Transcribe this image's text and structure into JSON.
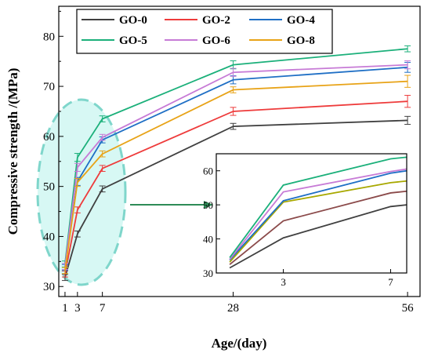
{
  "chart_data": {
    "type": "line",
    "xlabel": "Age/(day)",
    "ylabel": "Compressive strength /(MPa)",
    "x": [
      1,
      3,
      7,
      28,
      56
    ],
    "xticks": [
      "1",
      "3",
      "7",
      "28",
      "56"
    ],
    "yticks": [
      "30",
      "40",
      "50",
      "60",
      "70",
      "80"
    ],
    "xlim": [
      0,
      58
    ],
    "ylim": [
      28,
      86
    ],
    "grid": false,
    "legend_position": "top",
    "series": [
      {
        "name": "GO-0",
        "color": "#404040",
        "values": [
          31.8,
          40.5,
          49.5,
          62.0,
          63.2
        ],
        "errors": [
          0.6,
          0.6,
          0.6,
          0.6,
          0.8
        ]
      },
      {
        "name": "GO-2",
        "color": "#ee3b3b",
        "values": [
          32.5,
          45.3,
          53.6,
          65.0,
          67.0
        ],
        "errors": [
          0.6,
          0.6,
          0.6,
          0.8,
          1.2
        ]
      },
      {
        "name": "GO-4",
        "color": "#1f6fc5",
        "values": [
          33.8,
          51.0,
          59.3,
          71.3,
          73.8
        ],
        "errors": [
          0.6,
          0.8,
          0.6,
          0.8,
          1.0
        ]
      },
      {
        "name": "GO-5",
        "color": "#1bb07a",
        "values": [
          34.5,
          55.8,
          63.5,
          74.3,
          77.5
        ],
        "errors": [
          0.6,
          0.8,
          0.6,
          0.8,
          0.6
        ]
      },
      {
        "name": "GO-6",
        "color": "#c77bd6",
        "values": [
          34.0,
          53.8,
          59.8,
          72.8,
          74.3
        ],
        "errors": [
          0.6,
          0.8,
          0.6,
          0.8,
          0.8
        ]
      },
      {
        "name": "GO-8",
        "color": "#e8a317",
        "values": [
          33.2,
          50.8,
          56.5,
          69.3,
          71.0
        ],
        "errors": [
          0.6,
          0.8,
          0.6,
          0.6,
          1.2
        ]
      }
    ],
    "inset": {
      "xticks": [
        "3",
        "7"
      ],
      "yticks": [
        "30",
        "40",
        "50",
        "60"
      ],
      "xlim": [
        0.5,
        7.6
      ],
      "ylim": [
        30,
        65
      ],
      "series": [
        {
          "name": "GO-0",
          "color": "#404040",
          "values": [
            31.5,
            40.3,
            49.5,
            50.0
          ]
        },
        {
          "name": "GO-2",
          "color": "#8b4a4a",
          "values": [
            32.5,
            45.3,
            53.5,
            54.0
          ]
        },
        {
          "name": "GO-8",
          "color": "#a8a800",
          "values": [
            33.2,
            50.8,
            56.5,
            57.0
          ]
        },
        {
          "name": "GO-4",
          "color": "#1f6fc5",
          "values": [
            33.8,
            51.2,
            59.3,
            60.0
          ]
        },
        {
          "name": "GO-6",
          "color": "#c77bd6",
          "values": [
            34.0,
            53.8,
            59.8,
            60.5
          ]
        },
        {
          "name": "GO-5",
          "color": "#1bb07a",
          "values": [
            34.5,
            55.8,
            63.5,
            64.0
          ]
        }
      ],
      "x": [
        1,
        3,
        7,
        7.6
      ]
    }
  }
}
